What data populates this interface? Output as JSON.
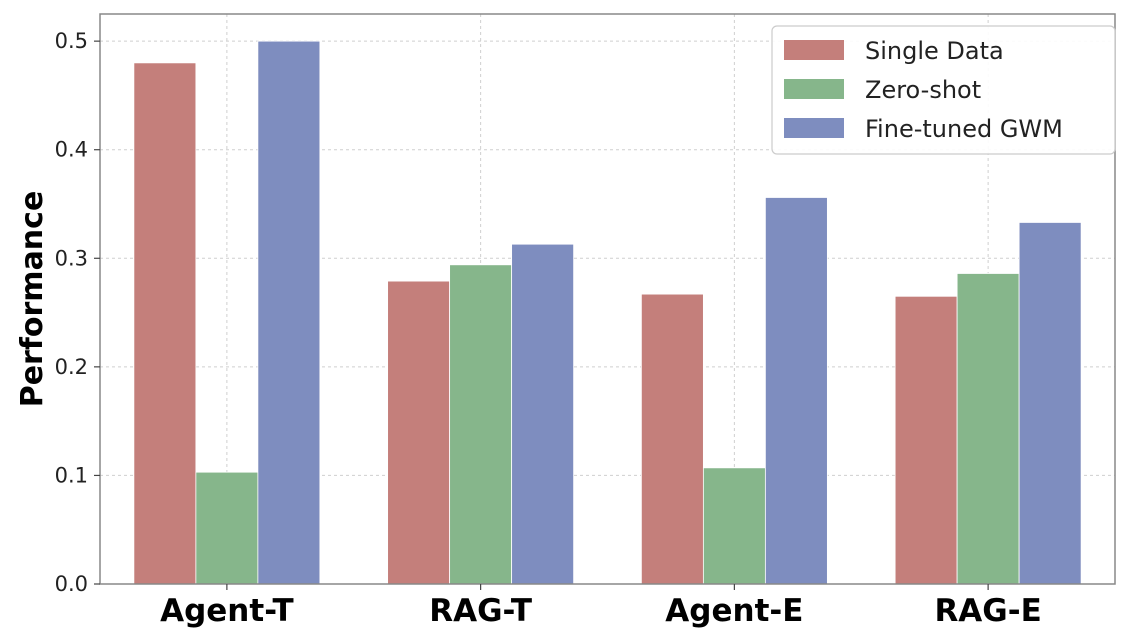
{
  "chart_data": {
    "type": "bar",
    "title": "",
    "xlabel": "",
    "ylabel": "Performance",
    "categories": [
      "Agent-T",
      "RAG-T",
      "Agent-E",
      "RAG-E"
    ],
    "series": [
      {
        "name": "Single Data",
        "color": "#c47f7b",
        "values": [
          0.48,
          0.279,
          0.267,
          0.265
        ]
      },
      {
        "name": "Zero-shot",
        "color": "#86b68b",
        "values": [
          0.103,
          0.294,
          0.107,
          0.286
        ]
      },
      {
        "name": "Fine-tuned GWM",
        "color": "#7e8dbf",
        "values": [
          0.5,
          0.313,
          0.356,
          0.333
        ]
      }
    ],
    "ylim": [
      0,
      0.525
    ],
    "yticks": [
      "0.0",
      "0.1",
      "0.2",
      "0.3",
      "0.4",
      "0.5"
    ],
    "grid": true,
    "legend_position": "top-right"
  }
}
